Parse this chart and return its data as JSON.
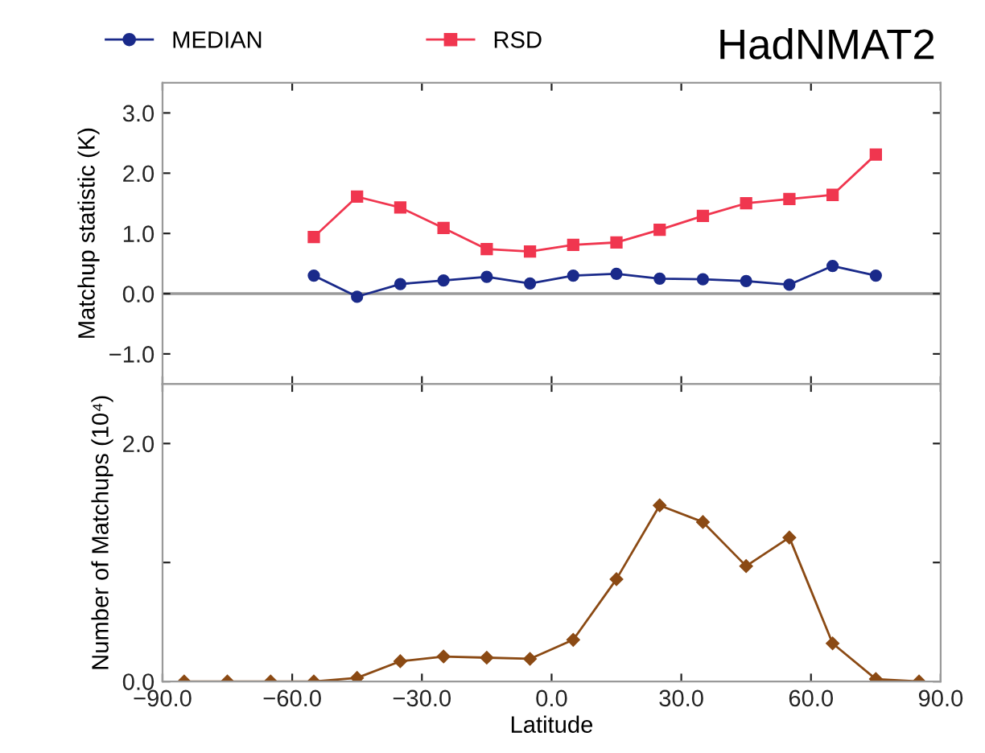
{
  "chart_data": [
    {
      "type": "line",
      "title": "HadNMAT2",
      "ylabel": "Matchup statistic (K)",
      "xlim": [
        -90,
        90
      ],
      "ylim": [
        -1.5,
        3.5
      ],
      "yticks": [
        {
          "value": -1.0,
          "label": "−1.0"
        },
        {
          "value": 0.0,
          "label": "0.0"
        },
        {
          "value": 1.0,
          "label": "1.0"
        },
        {
          "value": 2.0,
          "label": "2.0"
        },
        {
          "value": 3.0,
          "label": "3.0"
        }
      ],
      "xticks": [
        {
          "value": -90,
          "label": null
        },
        {
          "value": -60,
          "label": null
        },
        {
          "value": -30,
          "label": null
        },
        {
          "value": 0,
          "label": null
        },
        {
          "value": 30,
          "label": null
        },
        {
          "value": 60,
          "label": null
        },
        {
          "value": 90,
          "label": null
        }
      ],
      "tick_labels": "y",
      "legend": "top",
      "grid": false,
      "x": [
        -55,
        -45,
        -35,
        -25,
        -15,
        -5,
        5,
        15,
        25,
        35,
        45,
        55,
        65,
        75
      ],
      "ref_lines": [
        {
          "axis": "y",
          "value": 0,
          "color": "#999999"
        }
      ],
      "series": [
        {
          "name": "MEDIAN",
          "color": "#1a2a8a",
          "marker": "circle",
          "values": [
            0.3,
            -0.05,
            0.16,
            0.22,
            0.28,
            0.17,
            0.3,
            0.33,
            0.25,
            0.24,
            0.21,
            0.15,
            0.46,
            0.3
          ]
        },
        {
          "name": "RSD",
          "color": "#f0364f",
          "marker": "square",
          "values": [
            0.94,
            1.61,
            1.43,
            1.09,
            0.74,
            0.7,
            0.81,
            0.85,
            1.06,
            1.29,
            1.5,
            1.57,
            1.64,
            2.31
          ]
        }
      ]
    },
    {
      "type": "line",
      "xlabel": "Latitude",
      "ylabel": "Number of Matchups (10⁴)",
      "xlim": [
        -90,
        90
      ],
      "ylim": [
        0,
        2.5
      ],
      "marker": "diamond",
      "grid": false,
      "xticks": [
        {
          "value": -90,
          "label": "−90.0"
        },
        {
          "value": -60,
          "label": "−60.0"
        },
        {
          "value": -30,
          "label": "−30.0"
        },
        {
          "value": 0,
          "label": "0.0"
        },
        {
          "value": 30,
          "label": "30.0"
        },
        {
          "value": 60,
          "label": "60.0"
        },
        {
          "value": 90,
          "label": "90.0"
        }
      ],
      "yticks": [
        {
          "value": 0.0,
          "label": "0.0"
        },
        {
          "value": 1.0,
          "label": null
        },
        {
          "value": 2.0,
          "label": "2.0"
        }
      ],
      "x": [
        -85,
        -75,
        -65,
        -55,
        -45,
        -35,
        -25,
        -15,
        -5,
        5,
        15,
        25,
        35,
        45,
        55,
        65,
        75,
        85
      ],
      "series": [
        {
          "color": "#8b4a14",
          "values": [
            0,
            0,
            0,
            0,
            0.03,
            0.17,
            0.21,
            0.2,
            0.19,
            0.35,
            0.86,
            1.48,
            1.34,
            0.97,
            1.21,
            0.32,
            0.02,
            0
          ]
        }
      ]
    }
  ]
}
